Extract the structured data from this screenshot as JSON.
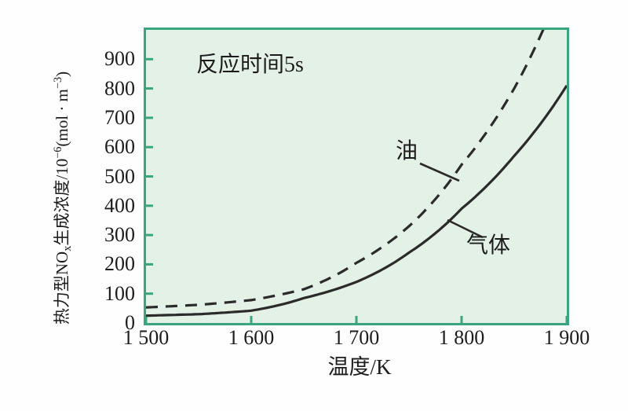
{
  "colors": {
    "frame": "#3ba57f",
    "plot_bg": "#e4f1e6",
    "curve": "#2b2b2b",
    "text": "#1c1c1c"
  },
  "figure": {
    "annotation": "反应时间5s",
    "x_axis": {
      "label": "温度/K",
      "tick_labels": [
        "1 500",
        "1 600",
        "1 700",
        "1 800",
        "1 900"
      ],
      "tick_values": [
        1500,
        1600,
        1700,
        1800,
        1900
      ]
    },
    "y_axis": {
      "label_parts": {
        "base1": "热力型NO",
        "sub1": "x",
        "base2": "生成浓度/10",
        "sup1": "−6",
        "base3": "(mol · m",
        "sup2": "−3",
        "base4": ")"
      },
      "tick_labels": [
        "0",
        "100",
        "200",
        "300",
        "400",
        "500",
        "600",
        "700",
        "800",
        "900"
      ],
      "tick_values": [
        0,
        100,
        200,
        300,
        400,
        500,
        600,
        700,
        800,
        900
      ]
    },
    "series_labels": {
      "oil": "油",
      "gas": "气体"
    }
  },
  "chart_data": {
    "type": "line",
    "title": "",
    "annotation": "反应时间5s",
    "xlabel": "温度/K",
    "ylabel": "热力型NOₓ生成浓度/10⁻⁶(mol · m⁻³)",
    "xlim": [
      1500,
      1900
    ],
    "ylim": [
      0,
      1000
    ],
    "grid": false,
    "legend_position": "inline-annotated",
    "x": [
      1500,
      1550,
      1600,
      1650,
      1700,
      1750,
      1800,
      1850,
      1900
    ],
    "series": [
      {
        "name": "油",
        "line_style": "dashed",
        "values": [
          53,
          62,
          78,
          115,
          205,
          330,
          540,
          800,
          1200
        ]
      },
      {
        "name": "气体",
        "line_style": "solid",
        "values": [
          25,
          30,
          42,
          85,
          140,
          240,
          390,
          570,
          810
        ]
      }
    ]
  }
}
